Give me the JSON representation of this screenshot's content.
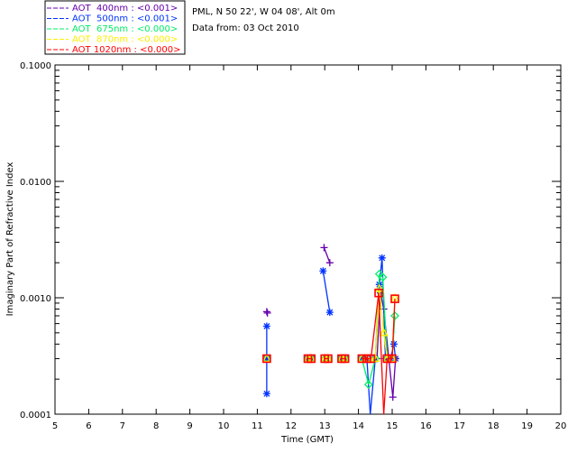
{
  "chart_data": {
    "type": "line",
    "title_lines": [
      "PML, N 50 22', W 04 08', Alt 0m",
      "Data from: 03 Oct 2010"
    ],
    "xlabel": "Time (GMT)",
    "ylabel": "Imaginary Part of Refractive Index",
    "xlim": [
      5,
      20
    ],
    "ylim": [
      0.0001,
      0.1
    ],
    "yscale": "log",
    "xticks": [
      "5",
      "6",
      "7",
      "8",
      "9",
      "10",
      "11",
      "12",
      "13",
      "14",
      "15",
      "16",
      "17",
      "18",
      "19",
      "20"
    ],
    "yticks": [
      "0.0001",
      "0.0010",
      "0.0100",
      "0.1000"
    ],
    "legend_position": "top-left",
    "series": [
      {
        "name": "AOT  400nm : <0.001>",
        "color": "#6600aa",
        "marker": "plus",
        "points": [
          [
            11.28,
            0.00076
          ],
          [
            11.3,
            0.00074
          ],
          [
            12.98,
            0.0027
          ],
          [
            13.15,
            0.002
          ],
          [
            14.55,
            0.0003
          ],
          [
            14.65,
            0.0011
          ],
          [
            14.75,
            0.0008
          ],
          [
            14.9,
            0.0003
          ],
          [
            15.02,
            0.00014
          ],
          [
            15.1,
            0.0003
          ]
        ]
      },
      {
        "name": "AOT  500nm : <0.001>",
        "color": "#0033ff",
        "marker": "asterisk",
        "points": [
          [
            11.28,
            0.00057
          ],
          [
            11.28,
            0.0003
          ],
          [
            11.28,
            0.00015
          ],
          [
            12.5,
            0.0003
          ],
          [
            12.6,
            0.0003
          ],
          [
            12.95,
            0.0017
          ],
          [
            13.15,
            0.00075
          ],
          [
            13.5,
            0.0003
          ],
          [
            13.6,
            0.0003
          ],
          [
            14.1,
            0.0003
          ],
          [
            14.25,
            0.0003
          ],
          [
            14.35,
            7e-05
          ],
          [
            14.5,
            0.0003
          ],
          [
            14.62,
            0.0013
          ],
          [
            14.7,
            0.0022
          ],
          [
            14.8,
            0.0003
          ],
          [
            14.95,
            0.0003
          ],
          [
            15.05,
            0.0004
          ],
          [
            15.1,
            0.0003
          ]
        ]
      },
      {
        "name": "AOT  675nm : <0.000>",
        "color": "#00ee66",
        "marker": "diamond",
        "points": [
          [
            11.28,
            0.0003
          ],
          [
            12.5,
            0.0003
          ],
          [
            12.6,
            0.0003
          ],
          [
            13.0,
            0.0003
          ],
          [
            13.1,
            0.0003
          ],
          [
            13.5,
            0.0003
          ],
          [
            13.6,
            0.0003
          ],
          [
            14.1,
            0.0003
          ],
          [
            14.3,
            0.00018
          ],
          [
            14.5,
            0.0003
          ],
          [
            14.62,
            0.0016
          ],
          [
            14.72,
            0.0015
          ],
          [
            14.85,
            0.0003
          ],
          [
            15.0,
            0.0003
          ],
          [
            15.08,
            0.0007
          ]
        ]
      },
      {
        "name": "AOT  870nm : <0.000>",
        "color": "#ffee00",
        "marker": "triangle",
        "points": [
          [
            11.28,
            0.0003
          ],
          [
            12.5,
            0.0003
          ],
          [
            12.6,
            0.0003
          ],
          [
            13.0,
            0.0003
          ],
          [
            13.1,
            0.0003
          ],
          [
            13.5,
            0.0003
          ],
          [
            13.6,
            0.0003
          ],
          [
            14.1,
            0.0003
          ],
          [
            14.25,
            0.0003
          ],
          [
            14.5,
            0.0003
          ],
          [
            14.62,
            0.0012
          ],
          [
            14.75,
            0.0005
          ],
          [
            14.85,
            0.0003
          ],
          [
            15.0,
            0.0003
          ],
          [
            15.08,
            0.001
          ]
        ]
      },
      {
        "name": "AOT 1020nm : <0.000>",
        "color": "#ff0000",
        "marker": "square",
        "points": [
          [
            11.28,
            0.0003
          ],
          [
            12.5,
            0.0003
          ],
          [
            12.6,
            0.0003
          ],
          [
            13.0,
            0.0003
          ],
          [
            13.1,
            0.0003
          ],
          [
            13.5,
            0.0003
          ],
          [
            13.6,
            0.0003
          ],
          [
            14.1,
            0.0003
          ],
          [
            14.25,
            0.0003
          ],
          [
            14.37,
            0.0003
          ],
          [
            14.6,
            0.0011
          ],
          [
            14.75,
            5e-05
          ],
          [
            14.85,
            0.0003
          ],
          [
            15.0,
            0.0003
          ],
          [
            15.08,
            0.00098
          ]
        ]
      }
    ]
  }
}
